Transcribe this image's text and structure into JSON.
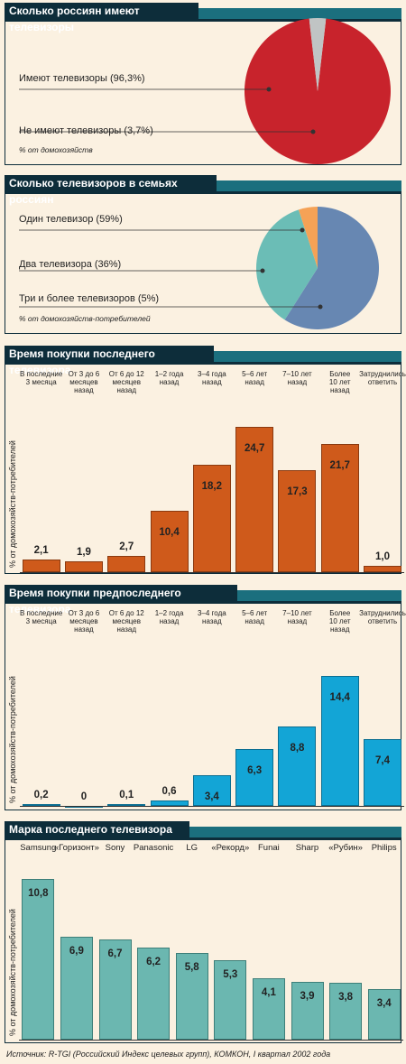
{
  "chart_data": [
    {
      "type": "pie",
      "title": "Сколько россиян имеют телевизоры",
      "note": "% от домохозяйств",
      "labels": [
        "Имеют телевизоры (96,3%)",
        "Не имеют телевизоры (3,7%)"
      ],
      "values": [
        96.3,
        3.7
      ],
      "colors": [
        "#c8232c",
        "#c0c4c4"
      ]
    },
    {
      "type": "pie",
      "title": "Сколько телевизоров в семьях  россиян",
      "note": "% от домохозяйств-потребителей",
      "labels": [
        "Один телевизор (59%)",
        "Два телевизора (36%)",
        "Три и более телевизоров (5%)"
      ],
      "values": [
        59,
        36,
        5
      ],
      "colors": [
        "#6787b2",
        "#6bbdb6",
        "#f5a256"
      ]
    },
    {
      "type": "bar",
      "title": "Время покупки последнего телевизора",
      "ylabel": "% от домохозяйств-потребителей",
      "categories": [
        "В последние\n3 месяца",
        "От 3 до 6\nмесяцев\nназад",
        "От 6 до 12\nмесяцев\nназад",
        "1–2 года\nназад",
        "3–4 года\nназад",
        "5–6 лет\nназад",
        "7–10 лет\nназад",
        "Более\n10 лет\nназад",
        "Затруднились\nответить"
      ],
      "values": [
        2.1,
        1.9,
        2.7,
        10.4,
        18.2,
        24.7,
        17.3,
        21.7,
        1.0
      ],
      "value_labels": [
        "2,1",
        "1,9",
        "2,7",
        "10,4",
        "18,2",
        "24,7",
        "17,3",
        "21,7",
        "1,0"
      ],
      "ylim": [
        0,
        26
      ],
      "color": "#cf5a1b"
    },
    {
      "type": "bar",
      "title": "Время покупки предпоследнего телевизора",
      "ylabel": "% от домохозяйств-потребителей",
      "categories": [
        "В последние\n3 месяца",
        "От 3 до 6\nмесяцев\nназад",
        "От 6 до 12\nмесяцев\nназад",
        "1–2 года\nназад",
        "3–4 года\nназад",
        "5–6 лет\nназад",
        "7–10 лет\nназад",
        "Более\n10 лет\nназад",
        "Затруднились\nответить"
      ],
      "values": [
        0.2,
        0,
        0.1,
        0.6,
        3.4,
        6.3,
        8.8,
        14.4,
        7.4
      ],
      "value_labels": [
        "0,2",
        "0",
        "0,1",
        "0,6",
        "3,4",
        "6,3",
        "8,8",
        "14,4",
        "7,4"
      ],
      "ylim": [
        0,
        15
      ],
      "color": "#13a5d6"
    },
    {
      "type": "bar",
      "title": "Марка последнего телевизора",
      "ylabel": "% от домохозяйств-потребителей",
      "categories": [
        "Samsung",
        "«Горизонт»",
        "Sony",
        "Panasonic",
        "LG",
        "«Рекорд»",
        "Funai",
        "Sharp",
        "«Рубин»",
        "Philips"
      ],
      "values": [
        10.8,
        6.9,
        6.7,
        6.2,
        5.8,
        5.3,
        4.1,
        3.9,
        3.8,
        3.4
      ],
      "value_labels": [
        "10,8",
        "6,9",
        "6,7",
        "6,2",
        "5,8",
        "5,3",
        "4,1",
        "3,9",
        "3,8",
        "3,4"
      ],
      "ylim": [
        0,
        11.5
      ],
      "color": "#6bb7b0"
    }
  ],
  "source": "Источник: R-TGI (Российский Индекс целевых групп), КОМКОН, I квартал 2002 года"
}
